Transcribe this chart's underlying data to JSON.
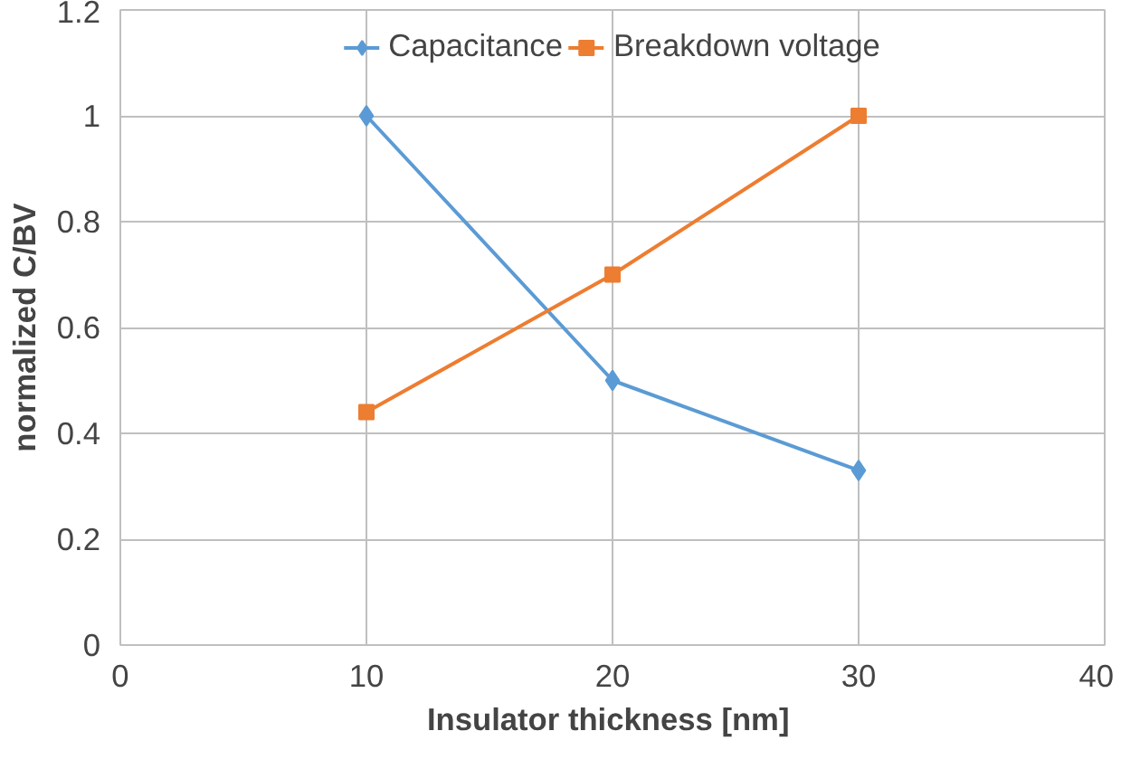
{
  "chart_data": {
    "type": "line",
    "xlabel": "Insulator thickness  [nm]",
    "ylabel": "normalized C/BV",
    "x": [
      10,
      20,
      30
    ],
    "series": [
      {
        "name": "Capacitance",
        "color": "#5b9bd5",
        "marker": "diamond",
        "values": [
          1,
          0.5,
          0.33
        ]
      },
      {
        "name": "Breakdown voltage",
        "color": "#ed7d31",
        "marker": "square",
        "values": [
          0.44,
          0.7,
          1
        ]
      }
    ],
    "xlim": [
      0,
      40
    ],
    "xticks": [
      0,
      10,
      20,
      30,
      40
    ],
    "ylim": [
      0,
      1.2
    ],
    "yticks": [
      0,
      0.2,
      0.4,
      0.6,
      0.8,
      1,
      1.2
    ],
    "grid": true,
    "legend": "top",
    "line_style": "solid"
  }
}
